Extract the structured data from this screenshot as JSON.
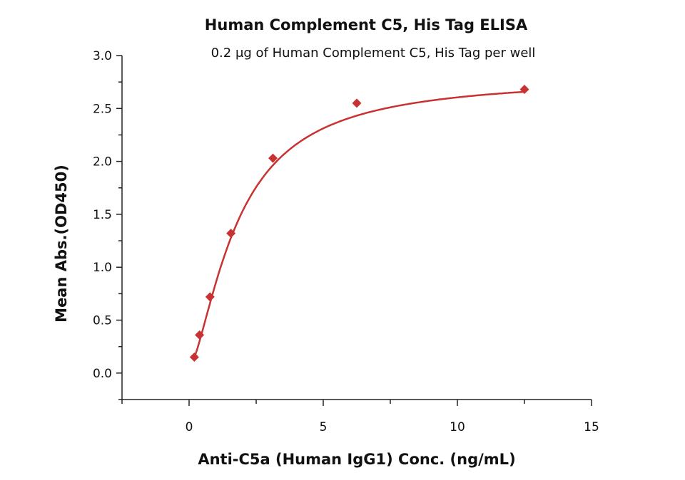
{
  "chart_data": {
    "type": "scatter",
    "title": "Human Complement C5, His Tag ELISA",
    "subtitle": "0.2 μg of Human Complement C5, His Tag per well",
    "xlabel": "Anti-C5a (Human IgG1) Conc. (ng/mL)",
    "ylabel": "Mean Abs.(OD450)",
    "xlim": [
      -2.5,
      15
    ],
    "ylim": [
      -0.25,
      3.0
    ],
    "x_ticks": [
      0,
      5,
      10,
      15
    ],
    "x_tick_labels": [
      "0",
      "5",
      "10",
      "15"
    ],
    "x_minor_ticks": [
      -2.5,
      2.5,
      7.5,
      12.5
    ],
    "y_ticks": [
      0.0,
      0.5,
      1.0,
      1.5,
      2.0,
      2.5,
      3.0
    ],
    "y_tick_labels": [
      "0.0",
      "0.5",
      "1.0",
      "1.5",
      "2.0",
      "2.5",
      "3.0"
    ],
    "grid": false,
    "marker": "diamond",
    "fit_curve": true,
    "color": "#c83232",
    "series": [
      {
        "x": [
          0.195,
          0.39,
          0.78,
          1.56,
          3.125,
          6.25,
          12.5
        ],
        "y": [
          0.15,
          0.36,
          0.72,
          1.32,
          2.03,
          2.55,
          2.68
        ]
      }
    ]
  }
}
